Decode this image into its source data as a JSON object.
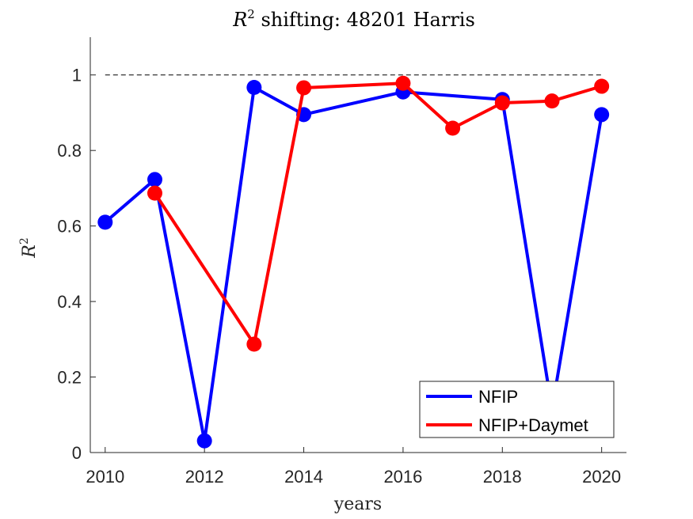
{
  "chart_data": {
    "type": "line",
    "title_prefix": "R",
    "title_sup": "2",
    "title_rest": " shifting: 48201 Harris",
    "xlabel": "years",
    "ylabel_base": "R",
    "ylabel_sup": "2",
    "xlim": [
      2009.7,
      2020.5
    ],
    "ylim": [
      0,
      1.1
    ],
    "x_ticks": [
      "2010",
      "2012",
      "2014",
      "2016",
      "2018",
      "2020"
    ],
    "y_ticks": [
      "0",
      "0.2",
      "0.4",
      "0.6",
      "0.8",
      "1"
    ],
    "reference_line": 1,
    "grid": false,
    "legend_position": "bottom-right",
    "series": [
      {
        "name": "NFIP",
        "color": "#0000ff",
        "x": [
          2010,
          2011,
          2012,
          2013,
          2014,
          2016,
          2018,
          2019,
          2020
        ],
        "y": [
          0.61,
          0.723,
          0.031,
          0.967,
          0.895,
          0.955,
          0.935,
          0.115,
          0.895
        ]
      },
      {
        "name": "NFIP+Daymet",
        "color": "#ff0000",
        "x": [
          2011,
          2013,
          2014,
          2016,
          2017,
          2018,
          2019,
          2020
        ],
        "y": [
          0.687,
          0.287,
          0.966,
          0.978,
          0.859,
          0.926,
          0.931,
          0.97
        ]
      }
    ]
  }
}
